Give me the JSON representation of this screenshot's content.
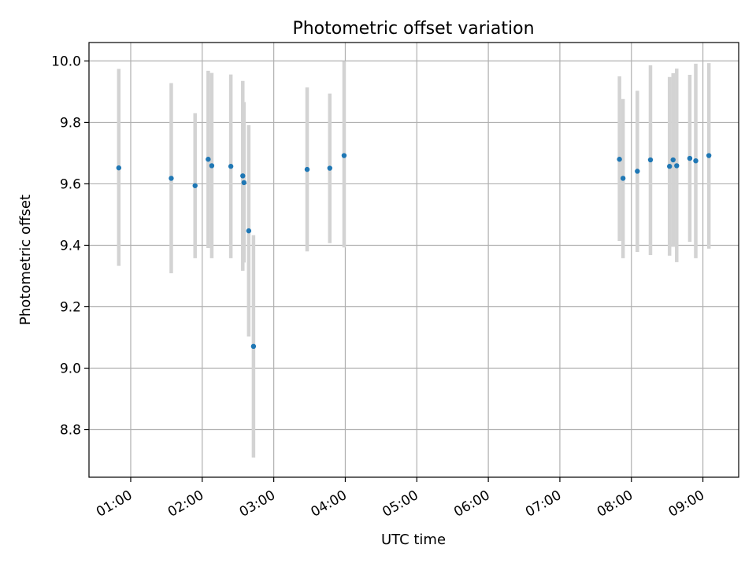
{
  "chart_data": {
    "type": "scatter",
    "title": "Photometric offset variation",
    "xlabel": "UTC time",
    "ylabel": "Photometric offset",
    "x_axis_kind": "time",
    "xlim": [
      "00:25",
      "09:30"
    ],
    "ylim": [
      8.645,
      10.06
    ],
    "grid": true,
    "x_ticks": [
      "01:00",
      "02:00",
      "03:00",
      "04:00",
      "05:00",
      "06:00",
      "07:00",
      "08:00",
      "09:00"
    ],
    "y_ticks": [
      "8.8",
      "9.0",
      "9.2",
      "9.4",
      "9.6",
      "9.8",
      "10.0"
    ],
    "y_tick_values": [
      8.8,
      9.0,
      9.2,
      9.4,
      9.6,
      9.8,
      10.0
    ],
    "colors": {
      "point": "#1f77b4",
      "errorbar": "#d3d3d3",
      "grid": "#b0b0b0"
    },
    "series": [
      {
        "points": [
          {
            "x": "00:50",
            "y": 9.652,
            "low": 9.333,
            "high": 9.974
          },
          {
            "x": "01:34",
            "y": 9.618,
            "low": 9.309,
            "high": 9.928
          },
          {
            "x": "01:54",
            "y": 9.594,
            "low": 9.358,
            "high": 9.83
          },
          {
            "x": "02:05",
            "y": 9.68,
            "low": 9.391,
            "high": 9.968
          },
          {
            "x": "02:08",
            "y": 9.659,
            "low": 9.358,
            "high": 9.961
          },
          {
            "x": "02:24",
            "y": 9.657,
            "low": 9.358,
            "high": 9.956
          },
          {
            "x": "02:34",
            "y": 9.626,
            "low": 9.317,
            "high": 9.935
          },
          {
            "x": "02:35",
            "y": 9.604,
            "low": 9.344,
            "high": 9.866
          },
          {
            "x": "02:39",
            "y": 9.447,
            "low": 9.103,
            "high": 9.791
          },
          {
            "x": "02:43",
            "y": 9.071,
            "low": 8.709,
            "high": 9.433
          },
          {
            "x": "03:28",
            "y": 9.647,
            "low": 9.38,
            "high": 9.914
          },
          {
            "x": "03:47",
            "y": 9.651,
            "low": 9.407,
            "high": 9.894
          },
          {
            "x": "03:59",
            "y": 9.692,
            "low": 9.393,
            "high": 9.999
          },
          {
            "x": "07:50",
            "y": 9.68,
            "low": 9.414,
            "high": 9.95
          },
          {
            "x": "07:53",
            "y": 9.618,
            "low": 9.358,
            "high": 9.876
          },
          {
            "x": "08:05",
            "y": 9.641,
            "low": 9.378,
            "high": 9.903
          },
          {
            "x": "08:16",
            "y": 9.678,
            "low": 9.368,
            "high": 9.986
          },
          {
            "x": "08:32",
            "y": 9.657,
            "low": 9.366,
            "high": 9.948
          },
          {
            "x": "08:35",
            "y": 9.678,
            "low": 9.395,
            "high": 9.96
          },
          {
            "x": "08:38",
            "y": 9.659,
            "low": 9.345,
            "high": 9.975
          },
          {
            "x": "08:49",
            "y": 9.683,
            "low": 9.411,
            "high": 9.955
          },
          {
            "x": "08:54",
            "y": 9.675,
            "low": 9.358,
            "high": 9.991
          },
          {
            "x": "09:05",
            "y": 9.692,
            "low": 9.389,
            "high": 9.993
          }
        ]
      }
    ]
  }
}
